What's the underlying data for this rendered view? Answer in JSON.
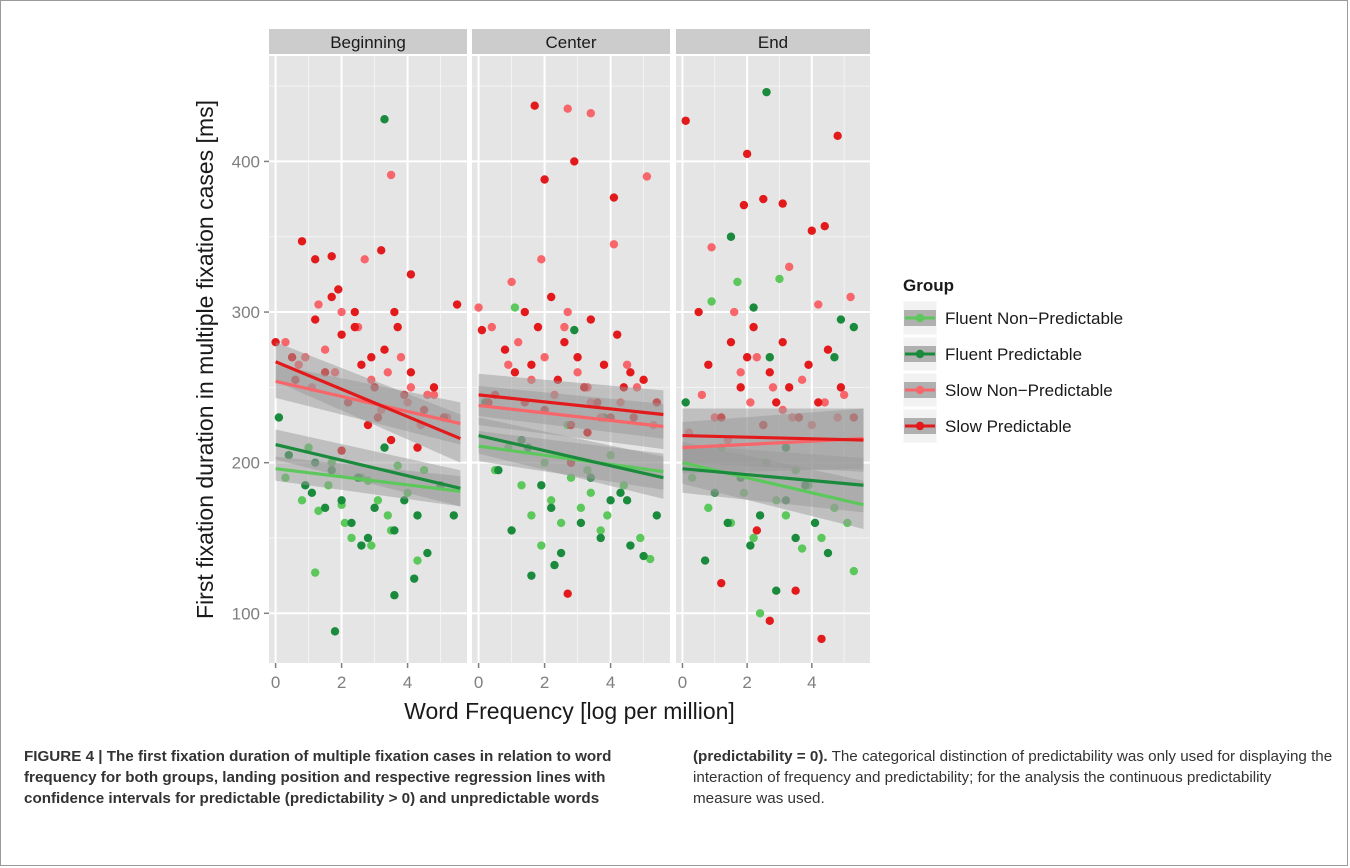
{
  "figure": {
    "colors": {
      "panel_bg": "#e5e5e5",
      "strip_bg": "#cccccc",
      "grid": "#ffffff",
      "band": "#999999",
      "fluent_nonpred": "#5cc85c",
      "fluent_pred": "#1a8a3c",
      "slow_nonpred": "#f7666a",
      "slow_pred": "#e31a1c"
    }
  },
  "chart_data": {
    "type": "scatter",
    "xlabel": "Word Frequency [log per million]",
    "ylabel": "First fixation duration in multiple fixation cases [ms]",
    "xlim": [
      -0.2,
      5.8
    ],
    "ylim": [
      67,
      470
    ],
    "x_ticks": [
      "0",
      "2",
      "4"
    ],
    "y_ticks": [
      "100",
      "200",
      "300",
      "400"
    ],
    "facets": [
      "Beginning",
      "Center",
      "End"
    ],
    "grid": true,
    "legend": {
      "title": "Group",
      "placement": "right",
      "entries": [
        "Fluent Non−Predictable",
        "Fluent Predictable",
        "Slow Non−Predictable",
        "Slow Predictable"
      ]
    },
    "series": [
      {
        "name": "Fluent Non−Predictable",
        "color": "#5cc85c",
        "regression": [
          {
            "facet": "Beginning",
            "x": [
              0,
              5.6
            ],
            "y": [
              196,
              181
            ],
            "band": [
              8,
              10
            ]
          },
          {
            "facet": "Center",
            "x": [
              0,
              5.6
            ],
            "y": [
              211,
              194
            ],
            "band": [
              10,
              12
            ]
          },
          {
            "facet": "End",
            "x": [
              0,
              5.6
            ],
            "y": [
              200,
              172
            ],
            "band": [
              14,
              16
            ]
          }
        ],
        "points": [
          {
            "facet": "Beginning",
            "x": [
              0.3,
              0.8,
              1.0,
              1.3,
              1.6,
              1.7,
              2.1,
              2.3,
              2.6,
              2.9,
              3.1,
              3.4,
              3.7,
              4.0,
              4.3,
              1.2,
              2.0,
              2.8,
              3.5,
              4.5
            ],
            "y": [
              190,
              175,
              210,
              168,
              185,
              200,
              160,
              150,
              190,
              145,
              175,
              165,
              198,
              180,
              135,
              127,
              172,
              188,
              155,
              195
            ]
          },
          {
            "facet": "Center",
            "x": [
              0.5,
              0.9,
              1.3,
              1.6,
              2.0,
              2.2,
              2.5,
              2.8,
              3.1,
              3.4,
              3.7,
              4.0,
              4.4,
              4.9,
              1.1,
              1.9,
              2.7,
              3.3,
              3.9,
              5.2
            ],
            "y": [
              195,
              210,
              185,
              165,
              200,
              175,
              160,
              190,
              170,
              180,
              155,
              205,
              185,
              150,
              303,
              145,
              225,
              195,
              165,
              136
            ]
          },
          {
            "facet": "End",
            "x": [
              0.3,
              0.8,
              1.2,
              1.5,
              1.9,
              2.2,
              2.6,
              2.9,
              3.2,
              3.5,
              3.9,
              4.3,
              4.7,
              5.1,
              0.9,
              1.7,
              2.4,
              3.0,
              3.7,
              5.3
            ],
            "y": [
              190,
              170,
              210,
              160,
              180,
              150,
              200,
              175,
              165,
              195,
              185,
              150,
              170,
              160,
              307,
              320,
              100,
              322,
              143,
              128
            ]
          }
        ]
      },
      {
        "name": "Fluent Predictable",
        "color": "#1a8a3c",
        "regression": [
          {
            "facet": "Beginning",
            "x": [
              0,
              5.6
            ],
            "y": [
              212,
              183
            ],
            "band": [
              10,
              12
            ]
          },
          {
            "facet": "Center",
            "x": [
              0,
              5.6
            ],
            "y": [
              218,
              190
            ],
            "band": [
              12,
              14
            ]
          },
          {
            "facet": "End",
            "x": [
              0,
              5.6
            ],
            "y": [
              196,
              185
            ],
            "band": [
              16,
              18
            ]
          }
        ],
        "points": [
          {
            "facet": "Beginning",
            "x": [
              0.1,
              0.4,
              0.9,
              1.2,
              1.5,
              1.8,
              2.0,
              2.3,
              2.5,
              2.8,
              3.0,
              3.3,
              3.6,
              3.9,
              4.2,
              4.6,
              5.0,
              5.4,
              1.7,
              3.3,
              3.6,
              4.3,
              2.6,
              1.1
            ],
            "y": [
              230,
              205,
              185,
              200,
              170,
              88,
              175,
              160,
              190,
              150,
              170,
              428,
              112,
              175,
              123,
              140,
              185,
              165,
              195,
              210,
              155,
              165,
              145,
              180
            ]
          },
          {
            "facet": "Center",
            "x": [
              0.2,
              0.6,
              1.0,
              1.3,
              1.6,
              1.9,
              2.2,
              2.5,
              2.8,
              3.1,
              3.4,
              3.7,
              4.0,
              4.3,
              4.6,
              5.0,
              5.4,
              1.5,
              2.9,
              3.8,
              4.5,
              2.3
            ],
            "y": [
              240,
              195,
              155,
              215,
              125,
              185,
              170,
              140,
              200,
              160,
              190,
              150,
              175,
              180,
              145,
              138,
              165,
              210,
              288,
              230,
              175,
              132
            ]
          },
          {
            "facet": "End",
            "x": [
              0.1,
              0.7,
              1.0,
              1.4,
              1.8,
              2.1,
              2.4,
              2.6,
              2.9,
              3.2,
              3.5,
              3.8,
              4.1,
              4.5,
              4.9,
              5.3,
              1.5,
              2.7,
              4.7,
              3.2,
              2.2
            ],
            "y": [
              240,
              135,
              180,
              160,
              190,
              145,
              165,
              446,
              115,
              175,
              150,
              185,
              160,
              140,
              295,
              290,
              350,
              270,
              270,
              210,
              303
            ]
          }
        ]
      },
      {
        "name": "Slow Non−Predictable",
        "color": "#f7666a",
        "regression": [
          {
            "facet": "Beginning",
            "x": [
              0,
              5.6
            ],
            "y": [
              254,
              226
            ],
            "band": [
              11,
              14
            ]
          },
          {
            "facet": "Center",
            "x": [
              0,
              5.6
            ],
            "y": [
              238,
              224
            ],
            "band": [
              13,
              15
            ]
          },
          {
            "facet": "End",
            "x": [
              0,
              5.6
            ],
            "y": [
              210,
              216
            ],
            "band": [
              17,
              20
            ]
          }
        ],
        "points": [
          {
            "facet": "Beginning",
            "x": [
              0.3,
              0.7,
              1.1,
              1.5,
              1.8,
              2.2,
              2.5,
              2.9,
              3.2,
              3.5,
              3.8,
              4.1,
              4.4,
              4.8,
              5.2,
              1.3,
              2.0,
              2.7,
              3.4,
              4.0,
              4.6,
              0.9
            ],
            "y": [
              280,
              265,
              250,
              275,
              260,
              240,
              290,
              255,
              235,
              391,
              270,
              250,
              225,
              245,
              230,
              305,
              300,
              335,
              260,
              240,
              245,
              270
            ]
          },
          {
            "facet": "Center",
            "x": [
              0.0,
              0.4,
              0.9,
              1.2,
              1.6,
              2.0,
              2.3,
              2.7,
              3.0,
              3.4,
              3.7,
              4.1,
              4.5,
              4.8,
              5.1,
              1.0,
              1.9,
              2.6,
              3.3,
              4.3,
              5.3,
              2.7,
              3.4
            ],
            "y": [
              303,
              290,
              265,
              280,
              255,
              270,
              245,
              300,
              260,
              240,
              230,
              345,
              265,
              250,
              390,
              320,
              335,
              290,
              250,
              240,
              225,
              435,
              432
            ]
          },
          {
            "facet": "End",
            "x": [
              0.2,
              0.6,
              1.0,
              1.4,
              1.8,
              2.1,
              2.5,
              2.8,
              3.1,
              3.4,
              3.7,
              4.0,
              4.4,
              4.8,
              5.2,
              0.9,
              1.6,
              2.3,
              3.3,
              4.2,
              5.0
            ],
            "y": [
              220,
              245,
              230,
              215,
              260,
              240,
              225,
              250,
              235,
              230,
              255,
              225,
              240,
              230,
              310,
              343,
              300,
              270,
              330,
              305,
              245
            ]
          }
        ]
      },
      {
        "name": "Slow Predictable",
        "color": "#e31a1c",
        "regression": [
          {
            "facet": "Beginning",
            "x": [
              0,
              5.6
            ],
            "y": [
              267,
              216
            ],
            "band": [
              13,
              16
            ]
          },
          {
            "facet": "Center",
            "x": [
              0,
              5.6
            ],
            "y": [
              245,
              232
            ],
            "band": [
              14,
              16
            ]
          },
          {
            "facet": "End",
            "x": [
              0,
              5.6
            ],
            "y": [
              218,
              215
            ],
            "band": [
              18,
              21
            ]
          }
        ],
        "points": [
          {
            "facet": "Beginning",
            "x": [
              0.0,
              0.5,
              0.8,
              1.2,
              1.5,
              1.7,
              2.0,
              2.2,
              2.4,
              2.6,
              2.8,
              3.0,
              3.1,
              3.3,
              3.5,
              3.7,
              3.9,
              4.1,
              4.3,
              4.5,
              4.8,
              5.1,
              5.5,
              1.2,
              1.7,
              3.2,
              4.1,
              2.4,
              0.6,
              1.9,
              2.9,
              3.6,
              2.0
            ],
            "y": [
              280,
              270,
              347,
              295,
              260,
              310,
              285,
              240,
              300,
              265,
              225,
              250,
              230,
              275,
              215,
              290,
              245,
              260,
              210,
              235,
              250,
              230,
              305,
              335,
              337,
              341,
              325,
              290,
              255,
              315,
              270,
              300,
              208
            ]
          },
          {
            "facet": "Center",
            "x": [
              0.1,
              0.5,
              0.8,
              1.1,
              1.4,
              1.6,
              1.8,
              2.0,
              2.2,
              2.4,
              2.6,
              2.8,
              3.0,
              3.2,
              3.4,
              3.6,
              3.8,
              4.0,
              4.2,
              4.4,
              4.7,
              5.0,
              5.4,
              1.7,
              2.0,
              2.9,
              4.1,
              1.4,
              2.7,
              3.3,
              4.6,
              0.3,
              2.8
            ],
            "y": [
              288,
              245,
              275,
              260,
              300,
              265,
              290,
              235,
              310,
              255,
              280,
              225,
              270,
              250,
              295,
              240,
              265,
              230,
              285,
              250,
              230,
              255,
              240,
              437,
              388,
              400,
              376,
              240,
              113,
              220,
              260,
              240,
              200
            ]
          },
          {
            "facet": "End",
            "x": [
              0.1,
              0.5,
              0.8,
              1.2,
              1.5,
              1.8,
              2.0,
              2.2,
              2.5,
              2.7,
              2.9,
              3.1,
              3.3,
              3.6,
              3.9,
              4.2,
              4.5,
              4.9,
              5.3,
              1.9,
              2.0,
              2.5,
              3.1,
              4.0,
              4.4,
              4.8,
              2.7,
              4.3,
              1.2,
              3.5,
              2.3
            ],
            "y": [
              427,
              300,
              265,
              230,
              280,
              250,
              270,
              290,
              225,
              260,
              240,
              280,
              250,
              230,
              265,
              240,
              275,
              250,
              230,
              371,
              405,
              375,
              372,
              354,
              357,
              417,
              95,
              83,
              120,
              115,
              155
            ]
          }
        ]
      }
    ]
  },
  "caption": {
    "label": "FIGURE 4 |",
    "title_left": "The first fixation duration of multiple fixation cases in relation to word frequency for both groups, landing position and respective regression lines with confidence intervals for predictable (predictability > 0) and unpredictable words",
    "title_right": "(predictability = 0).",
    "body": "The categorical distinction of predictability was only used for displaying the interaction of frequency and predictability; for the analysis the continuous predictability measure was used."
  }
}
